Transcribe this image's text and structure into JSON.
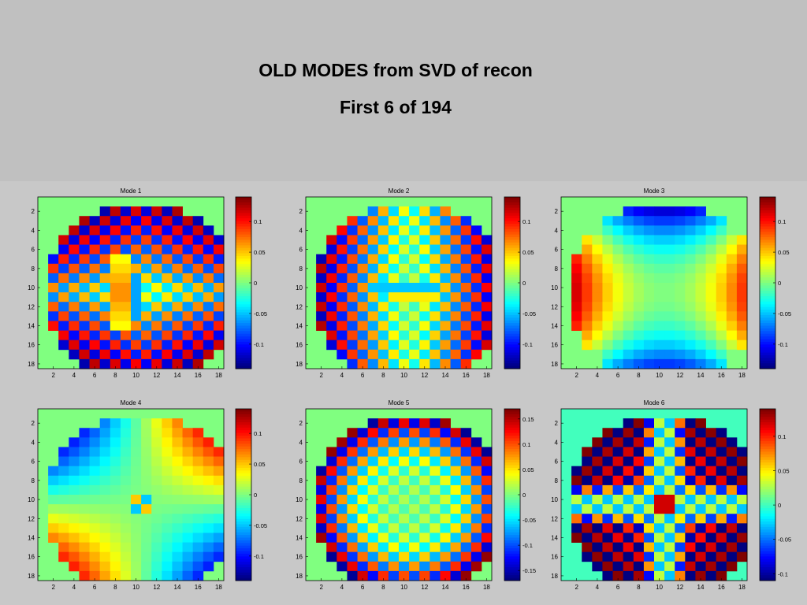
{
  "slide": {
    "title_line1": "OLD MODES from SVD of recon",
    "title_line2": "First 6 of 194"
  },
  "colormap": "jet",
  "colors": {
    "header_background": "#c0c0c0",
    "figure_background": "#c8c8c8",
    "colormap_stops": [
      "#00008f",
      "#0000ff",
      "#00ffff",
      "#ffff00",
      "#ff0000",
      "#800000"
    ]
  },
  "chart_data": [
    {
      "type": "heatmap",
      "title": "Mode 1",
      "grid_size": 18,
      "x_ticks": [
        2,
        4,
        6,
        8,
        10,
        12,
        14,
        16,
        18
      ],
      "y_ticks": [
        2,
        4,
        6,
        8,
        10,
        12,
        14,
        16,
        18
      ],
      "pattern": "checkerboard with strong amplitude in upper and lower lobes",
      "clim": [
        -0.14,
        0.14
      ],
      "colorbar_ticks": [
        -0.1,
        -0.05,
        0,
        0.05,
        0.1
      ],
      "colorbar_labels": [
        "-0.1",
        "-0.05",
        "0",
        "0.05",
        "0.1"
      ]
    },
    {
      "type": "heatmap",
      "title": "Mode 2",
      "grid_size": 18,
      "x_ticks": [
        2,
        4,
        6,
        8,
        10,
        12,
        14,
        16,
        18
      ],
      "y_ticks": [
        2,
        4,
        6,
        8,
        10,
        12,
        14,
        16,
        18
      ],
      "pattern": "checkerboard with strong amplitude in left and right lobes",
      "clim": [
        -0.14,
        0.14
      ],
      "colorbar_ticks": [
        -0.1,
        -0.05,
        0,
        0.05,
        0.1
      ],
      "colorbar_labels": [
        "-0.1",
        "-0.05",
        "0",
        "0.05",
        "0.1"
      ]
    },
    {
      "type": "heatmap",
      "title": "Mode 3",
      "grid_size": 18,
      "x_ticks": [
        2,
        4,
        6,
        8,
        10,
        12,
        14,
        16,
        18
      ],
      "y_ticks": [
        2,
        4,
        6,
        8,
        10,
        12,
        14,
        16,
        18
      ],
      "pattern": "smooth saddle: positive left and right, negative top and bottom",
      "clim": [
        -0.14,
        0.14
      ],
      "colorbar_ticks": [
        -0.1,
        -0.05,
        0,
        0.05,
        0.1
      ],
      "colorbar_labels": [
        "-0.1",
        "-0.05",
        "0",
        "0.05",
        "0.1"
      ]
    },
    {
      "type": "heatmap",
      "title": "Mode 4",
      "grid_size": 18,
      "x_ticks": [
        2,
        4,
        6,
        8,
        10,
        12,
        14,
        16,
        18
      ],
      "y_ticks": [
        2,
        4,
        6,
        8,
        10,
        12,
        14,
        16,
        18
      ],
      "pattern": "smooth quadrant pattern: positive top-right and bottom-left, negative top-left and bottom-right",
      "clim": [
        -0.14,
        0.14
      ],
      "colorbar_ticks": [
        -0.1,
        -0.05,
        0,
        0.05,
        0.1
      ],
      "colorbar_labels": [
        "-0.1",
        "-0.05",
        "0",
        "0.05",
        "0.1"
      ]
    },
    {
      "type": "heatmap",
      "title": "Mode 5",
      "grid_size": 18,
      "x_ticks": [
        2,
        4,
        6,
        8,
        10,
        12,
        14,
        16,
        18
      ],
      "y_ticks": [
        2,
        4,
        6,
        8,
        10,
        12,
        14,
        16,
        18
      ],
      "pattern": "checkerboard with strong amplitude near the rim",
      "clim": [
        -0.17,
        0.17
      ],
      "colorbar_ticks": [
        -0.15,
        -0.1,
        -0.05,
        0,
        0.05,
        0.1,
        0.15
      ],
      "colorbar_labels": [
        "-0.15",
        "-0.1",
        "-0.05",
        "0",
        "0.05",
        "0.1",
        "0.15"
      ]
    },
    {
      "type": "heatmap",
      "title": "Mode 6",
      "grid_size": 18,
      "x_ticks": [
        2,
        4,
        6,
        8,
        10,
        12,
        14,
        16,
        18
      ],
      "y_ticks": [
        2,
        4,
        6,
        8,
        10,
        12,
        14,
        16,
        18
      ],
      "pattern": "diagonal checkerboard with cross of weak amplitude",
      "clim": [
        -0.11,
        0.14
      ],
      "colorbar_ticks": [
        -0.1,
        -0.05,
        0,
        0.05,
        0.1
      ],
      "colorbar_labels": [
        "-0.1",
        "-0.05",
        "0",
        "0.05",
        "0.1"
      ]
    }
  ]
}
